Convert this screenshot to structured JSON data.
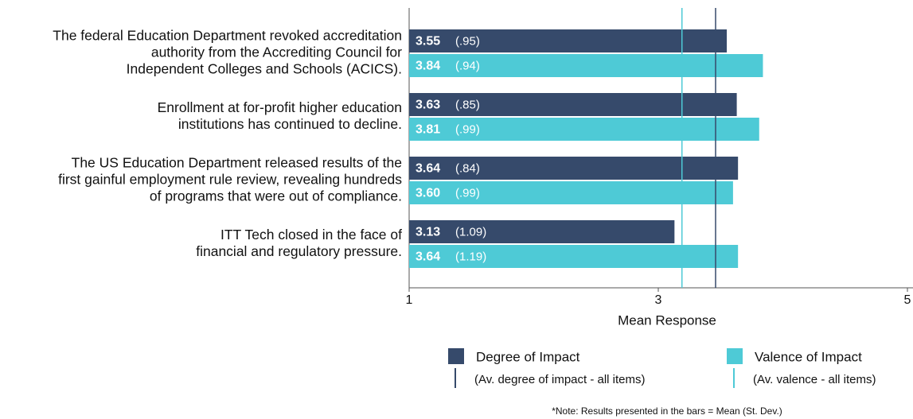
{
  "chart_data": {
    "type": "bar",
    "orientation": "horizontal",
    "categories": [
      [
        "The federal Education Department revoked accreditation",
        "authority from the Accrediting Council for",
        "Independent Colleges and Schools (ACICS)."
      ],
      [
        "Enrollment at for-profit higher education",
        "institutions has continued to decline."
      ],
      [
        "The US Education Department released results of the",
        "first gainful employment rule review, revealing hundreds",
        "of programs that were out of compliance."
      ],
      [
        "ITT Tech closed in the face of",
        "financial and regulatory pressure."
      ]
    ],
    "series": [
      {
        "name": "Degree of Impact",
        "color": "#364a6b",
        "values": [
          3.55,
          3.63,
          3.64,
          3.13
        ],
        "sd": [
          0.95,
          0.85,
          0.84,
          1.09
        ],
        "sd_labels": [
          "(.95)",
          "(.85)",
          "(.84)",
          "(1.09)"
        ]
      },
      {
        "name": "Valence of Impact",
        "color": "#4ecad6",
        "values": [
          3.84,
          3.81,
          3.6,
          3.64
        ],
        "sd": [
          0.94,
          0.99,
          0.99,
          1.19
        ],
        "sd_labels": [
          "(.94)",
          "(.99)",
          "(.99)",
          "(1.19)"
        ],
        "value_labels": [
          "3.84",
          "3.81",
          "3.60",
          "3.64"
        ]
      }
    ],
    "reference_lines": [
      {
        "name": "(Av. degree of impact - all items)",
        "value": 3.46,
        "color": "#364a6b"
      },
      {
        "name": "(Av. valence - all items)",
        "value": 3.19,
        "color": "#4ecad6"
      }
    ],
    "xlim": [
      1,
      5
    ],
    "xticks": [
      1,
      3,
      5
    ],
    "xlabel": "Mean Response",
    "note": "*Note: Results presented in the bars = Mean (St. Dev.)"
  }
}
